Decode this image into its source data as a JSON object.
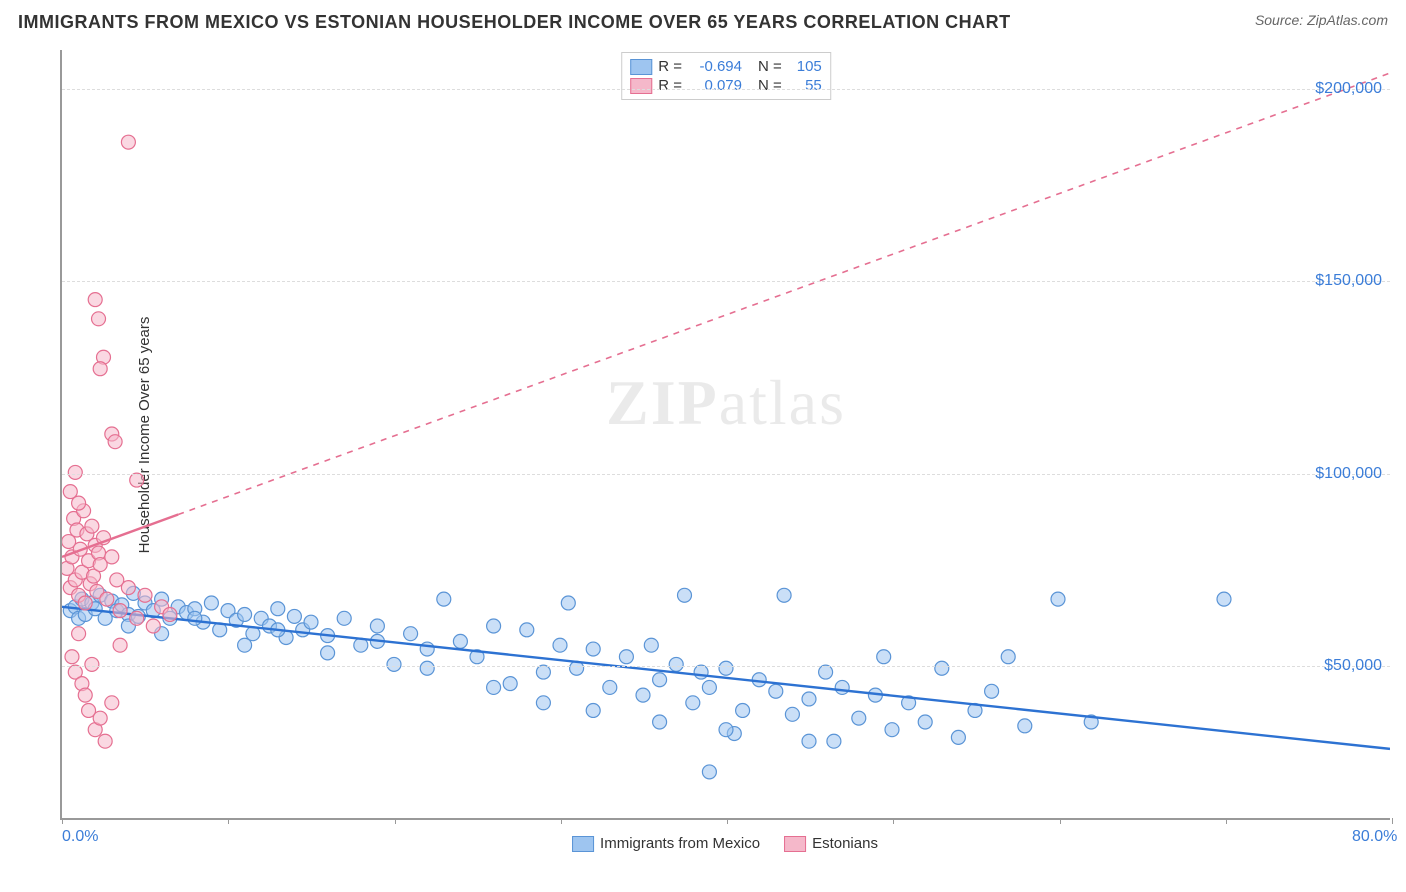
{
  "title": "IMMIGRANTS FROM MEXICO VS ESTONIAN HOUSEHOLDER INCOME OVER 65 YEARS CORRELATION CHART",
  "source": "Source: ZipAtlas.com",
  "watermark_bold": "ZIP",
  "watermark_rest": "atlas",
  "yaxis_label": "Householder Income Over 65 years",
  "chart": {
    "type": "scatter",
    "background": "#ffffff",
    "grid_color": "#dddddd",
    "axis_color": "#999999",
    "tick_label_color": "#3b7dd8",
    "label_color": "#333333",
    "xlim": [
      0,
      80
    ],
    "ylim": [
      10000,
      210000
    ],
    "x_ticks": [
      0,
      10,
      20,
      30,
      40,
      50,
      60,
      70,
      80
    ],
    "x_tick_labels_shown": {
      "0": "0.0%",
      "80": "80.0%"
    },
    "y_ticks": [
      50000,
      100000,
      150000,
      200000
    ],
    "y_tick_labels": [
      "$50,000",
      "$100,000",
      "$150,000",
      "$200,000"
    ],
    "marker_radius": 7,
    "marker_opacity": 0.55,
    "line_width_solid": 2.4,
    "line_width_dash": 1.6,
    "dash_pattern": "6,6"
  },
  "series": [
    {
      "key": "mexico",
      "label": "Immigrants from Mexico",
      "fill": "#9ec5f0",
      "stroke": "#5a94d6",
      "line_color": "#2d72d2",
      "R": "-0.694",
      "N": "105",
      "trend": {
        "x1": 0,
        "y1": 65000,
        "x2": 80,
        "y2": 28000,
        "solid_until_x": 80
      },
      "points": [
        [
          0.5,
          64000
        ],
        [
          0.8,
          65000
        ],
        [
          1.0,
          62000
        ],
        [
          1.2,
          67000
        ],
        [
          1.4,
          63000
        ],
        [
          1.8,
          66000
        ],
        [
          2.0,
          64500
        ],
        [
          2.3,
          68000
        ],
        [
          2.6,
          62000
        ],
        [
          3.0,
          66500
        ],
        [
          3.3,
          64000
        ],
        [
          3.6,
          65500
        ],
        [
          4.0,
          63000
        ],
        [
          4.3,
          68500
        ],
        [
          4.6,
          62500
        ],
        [
          5.0,
          66000
        ],
        [
          5.5,
          64000
        ],
        [
          6.0,
          67000
        ],
        [
          6.5,
          62000
        ],
        [
          7.0,
          65000
        ],
        [
          7.5,
          63500
        ],
        [
          8.0,
          64500
        ],
        [
          8.5,
          61000
        ],
        [
          9.0,
          66000
        ],
        [
          9.5,
          59000
        ],
        [
          10.0,
          64000
        ],
        [
          10.5,
          61500
        ],
        [
          11.0,
          63000
        ],
        [
          11.5,
          58000
        ],
        [
          12.0,
          62000
        ],
        [
          12.5,
          60000
        ],
        [
          13.0,
          64500
        ],
        [
          13.5,
          57000
        ],
        [
          14.0,
          62500
        ],
        [
          14.5,
          59000
        ],
        [
          15.0,
          61000
        ],
        [
          16.0,
          57500
        ],
        [
          17.0,
          62000
        ],
        [
          18.0,
          55000
        ],
        [
          19.0,
          60000
        ],
        [
          20.0,
          50000
        ],
        [
          21.0,
          58000
        ],
        [
          22.0,
          54000
        ],
        [
          23.0,
          67000
        ],
        [
          24.0,
          56000
        ],
        [
          25.0,
          52000
        ],
        [
          26.0,
          60000
        ],
        [
          27.0,
          45000
        ],
        [
          28.0,
          59000
        ],
        [
          29.0,
          48000
        ],
        [
          30.0,
          55000
        ],
        [
          30.5,
          66000
        ],
        [
          31.0,
          49000
        ],
        [
          32.0,
          54000
        ],
        [
          33.0,
          44000
        ],
        [
          34.0,
          52000
        ],
        [
          35.0,
          42000
        ],
        [
          35.5,
          55000
        ],
        [
          36.0,
          46000
        ],
        [
          37.0,
          50000
        ],
        [
          37.5,
          68000
        ],
        [
          38.0,
          40000
        ],
        [
          38.5,
          48000
        ],
        [
          39.0,
          44000
        ],
        [
          40.0,
          49000
        ],
        [
          40.5,
          32000
        ],
        [
          41.0,
          38000
        ],
        [
          42.0,
          46000
        ],
        [
          43.0,
          43000
        ],
        [
          43.5,
          68000
        ],
        [
          44.0,
          37000
        ],
        [
          45.0,
          41000
        ],
        [
          46.0,
          48000
        ],
        [
          46.5,
          30000
        ],
        [
          47.0,
          44000
        ],
        [
          48.0,
          36000
        ],
        [
          49.0,
          42000
        ],
        [
          49.5,
          52000
        ],
        [
          50.0,
          33000
        ],
        [
          51.0,
          40000
        ],
        [
          52.0,
          35000
        ],
        [
          53.0,
          49000
        ],
        [
          54.0,
          31000
        ],
        [
          55.0,
          38000
        ],
        [
          56.0,
          43000
        ],
        [
          57.0,
          52000
        ],
        [
          58.0,
          34000
        ],
        [
          60.0,
          67000
        ],
        [
          62.0,
          35000
        ],
        [
          70.0,
          67000
        ],
        [
          4.0,
          60000
        ],
        [
          6.0,
          58000
        ],
        [
          8.0,
          62000
        ],
        [
          11.0,
          55000
        ],
        [
          13.0,
          59000
        ],
        [
          16.0,
          53000
        ],
        [
          19.0,
          56000
        ],
        [
          22.0,
          49000
        ],
        [
          26.0,
          44000
        ],
        [
          29.0,
          40000
        ],
        [
          32.0,
          38000
        ],
        [
          36.0,
          35000
        ],
        [
          39.0,
          22000
        ],
        [
          40.0,
          33000
        ],
        [
          45.0,
          30000
        ]
      ]
    },
    {
      "key": "estonians",
      "label": "Estonians",
      "fill": "#f5b8ca",
      "stroke": "#e56f91",
      "line_color": "#e56f91",
      "R": "0.079",
      "N": "55",
      "trend": {
        "x1": 0,
        "y1": 78000,
        "x2": 80,
        "y2": 204000,
        "solid_until_x": 7
      },
      "points": [
        [
          0.3,
          75000
        ],
        [
          0.4,
          82000
        ],
        [
          0.5,
          70000
        ],
        [
          0.6,
          78000
        ],
        [
          0.7,
          88000
        ],
        [
          0.8,
          72000
        ],
        [
          0.9,
          85000
        ],
        [
          1.0,
          68000
        ],
        [
          1.1,
          80000
        ],
        [
          1.2,
          74000
        ],
        [
          1.3,
          90000
        ],
        [
          1.4,
          66000
        ],
        [
          1.5,
          84000
        ],
        [
          1.6,
          77000
        ],
        [
          1.7,
          71000
        ],
        [
          1.8,
          86000
        ],
        [
          1.9,
          73000
        ],
        [
          2.0,
          81000
        ],
        [
          2.1,
          69000
        ],
        [
          2.2,
          79000
        ],
        [
          2.3,
          76000
        ],
        [
          2.5,
          83000
        ],
        [
          2.7,
          67000
        ],
        [
          3.0,
          78000
        ],
        [
          3.3,
          72000
        ],
        [
          3.5,
          64000
        ],
        [
          4.0,
          70000
        ],
        [
          4.5,
          62000
        ],
        [
          5.0,
          68000
        ],
        [
          5.5,
          60000
        ],
        [
          6.0,
          65000
        ],
        [
          6.5,
          63000
        ],
        [
          0.5,
          95000
        ],
        [
          0.8,
          100000
        ],
        [
          1.0,
          92000
        ],
        [
          2.0,
          145000
        ],
        [
          2.2,
          140000
        ],
        [
          2.5,
          130000
        ],
        [
          2.3,
          127000
        ],
        [
          3.0,
          110000
        ],
        [
          3.2,
          108000
        ],
        [
          4.5,
          98000
        ],
        [
          4.0,
          186000
        ],
        [
          0.6,
          52000
        ],
        [
          0.8,
          48000
        ],
        [
          1.0,
          58000
        ],
        [
          1.2,
          45000
        ],
        [
          1.4,
          42000
        ],
        [
          1.6,
          38000
        ],
        [
          1.8,
          50000
        ],
        [
          2.0,
          33000
        ],
        [
          2.3,
          36000
        ],
        [
          2.6,
          30000
        ],
        [
          3.0,
          40000
        ],
        [
          3.5,
          55000
        ]
      ]
    }
  ],
  "legend_top_rows": [
    {
      "swatch_series": 0,
      "r_label": "R =",
      "r_val": "-0.694",
      "n_label": "N =",
      "n_val": "105"
    },
    {
      "swatch_series": 1,
      "r_label": "R =",
      "r_val": " 0.079",
      "n_label": "N =",
      "n_val": " 55"
    }
  ]
}
